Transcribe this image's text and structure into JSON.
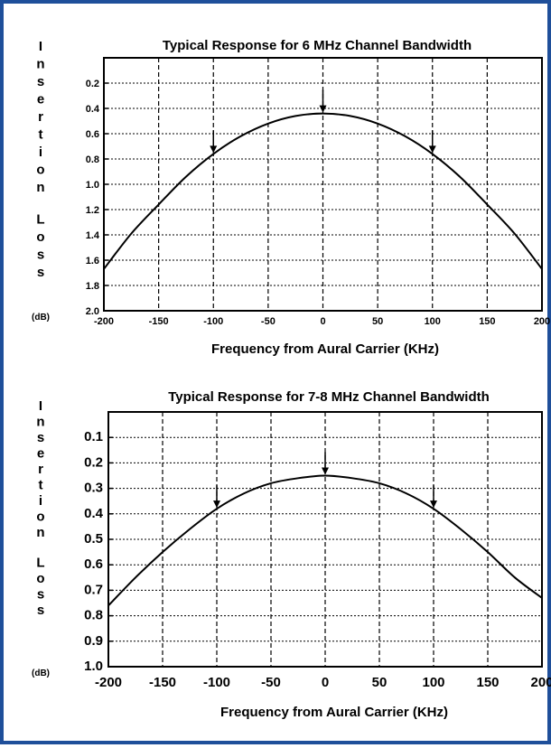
{
  "colors": {
    "border": "#1f4f9a",
    "curve": "#000000",
    "grid": "#000000"
  },
  "chart_data": [
    {
      "type": "line",
      "title": "Typical Response for 6 MHz Channel Bandwidth",
      "xlabel": "Frequency from Aural Carrier (KHz)",
      "ylabel_chars": [
        "I",
        "n",
        "s",
        "e",
        "r",
        "t",
        "i",
        "o",
        "n",
        "L",
        "o",
        "s",
        "s"
      ],
      "ylabel_unit": "(dB)",
      "xlim": [
        -200,
        200
      ],
      "ylim": [
        0.0,
        2.0
      ],
      "y_inverted": true,
      "x_ticks": [
        "-200",
        "-150",
        "-100",
        "-50",
        "0",
        "50",
        "100",
        "150",
        "200"
      ],
      "y_ticks": [
        "0.2",
        "0.4",
        "0.6",
        "0.8",
        "1.0",
        "1.2",
        "1.4",
        "1.6",
        "1.8",
        "2.0"
      ],
      "grid": true,
      "series": [
        {
          "x": [
            -200,
            -175,
            -150,
            -125,
            -100,
            -75,
            -50,
            -25,
            0,
            25,
            50,
            75,
            100,
            125,
            150,
            175,
            200
          ],
          "y": [
            1.67,
            1.39,
            1.16,
            0.94,
            0.76,
            0.62,
            0.52,
            0.46,
            0.44,
            0.46,
            0.52,
            0.62,
            0.76,
            0.94,
            1.16,
            1.39,
            1.67
          ]
        }
      ],
      "markers": [
        {
          "x": -100,
          "y": 0.76
        },
        {
          "x": 0,
          "y": 0.44
        },
        {
          "x": 100,
          "y": 0.76
        }
      ]
    },
    {
      "type": "line",
      "title": "Typical Response for 7-8 MHz Channel Bandwidth",
      "xlabel": "Frequency from Aural Carrier (KHz)",
      "ylabel_chars": [
        "I",
        "n",
        "s",
        "e",
        "r",
        "t",
        "i",
        "o",
        "n",
        "L",
        "o",
        "s",
        "s"
      ],
      "ylabel_unit": "(dB)",
      "xlim": [
        -200,
        200
      ],
      "ylim": [
        0.0,
        1.0
      ],
      "y_inverted": true,
      "x_ticks": [
        "-200",
        "-150",
        "-100",
        "-50",
        "0",
        "50",
        "100",
        "150",
        "200"
      ],
      "y_ticks": [
        "0.1",
        "0.2",
        "0.3",
        "0.4",
        "0.5",
        "0.6",
        "0.7",
        "0.8",
        "0.9",
        "1.0"
      ],
      "grid": true,
      "series": [
        {
          "x": [
            -200,
            -175,
            -150,
            -125,
            -100,
            -75,
            -50,
            -25,
            0,
            25,
            50,
            75,
            100,
            125,
            150,
            175,
            200
          ],
          "y": [
            0.76,
            0.65,
            0.55,
            0.46,
            0.38,
            0.32,
            0.28,
            0.26,
            0.25,
            0.26,
            0.28,
            0.32,
            0.38,
            0.46,
            0.55,
            0.65,
            0.73
          ]
        }
      ],
      "markers": [
        {
          "x": -100,
          "y": 0.38
        },
        {
          "x": 0,
          "y": 0.25
        },
        {
          "x": 100,
          "y": 0.38
        }
      ]
    }
  ]
}
